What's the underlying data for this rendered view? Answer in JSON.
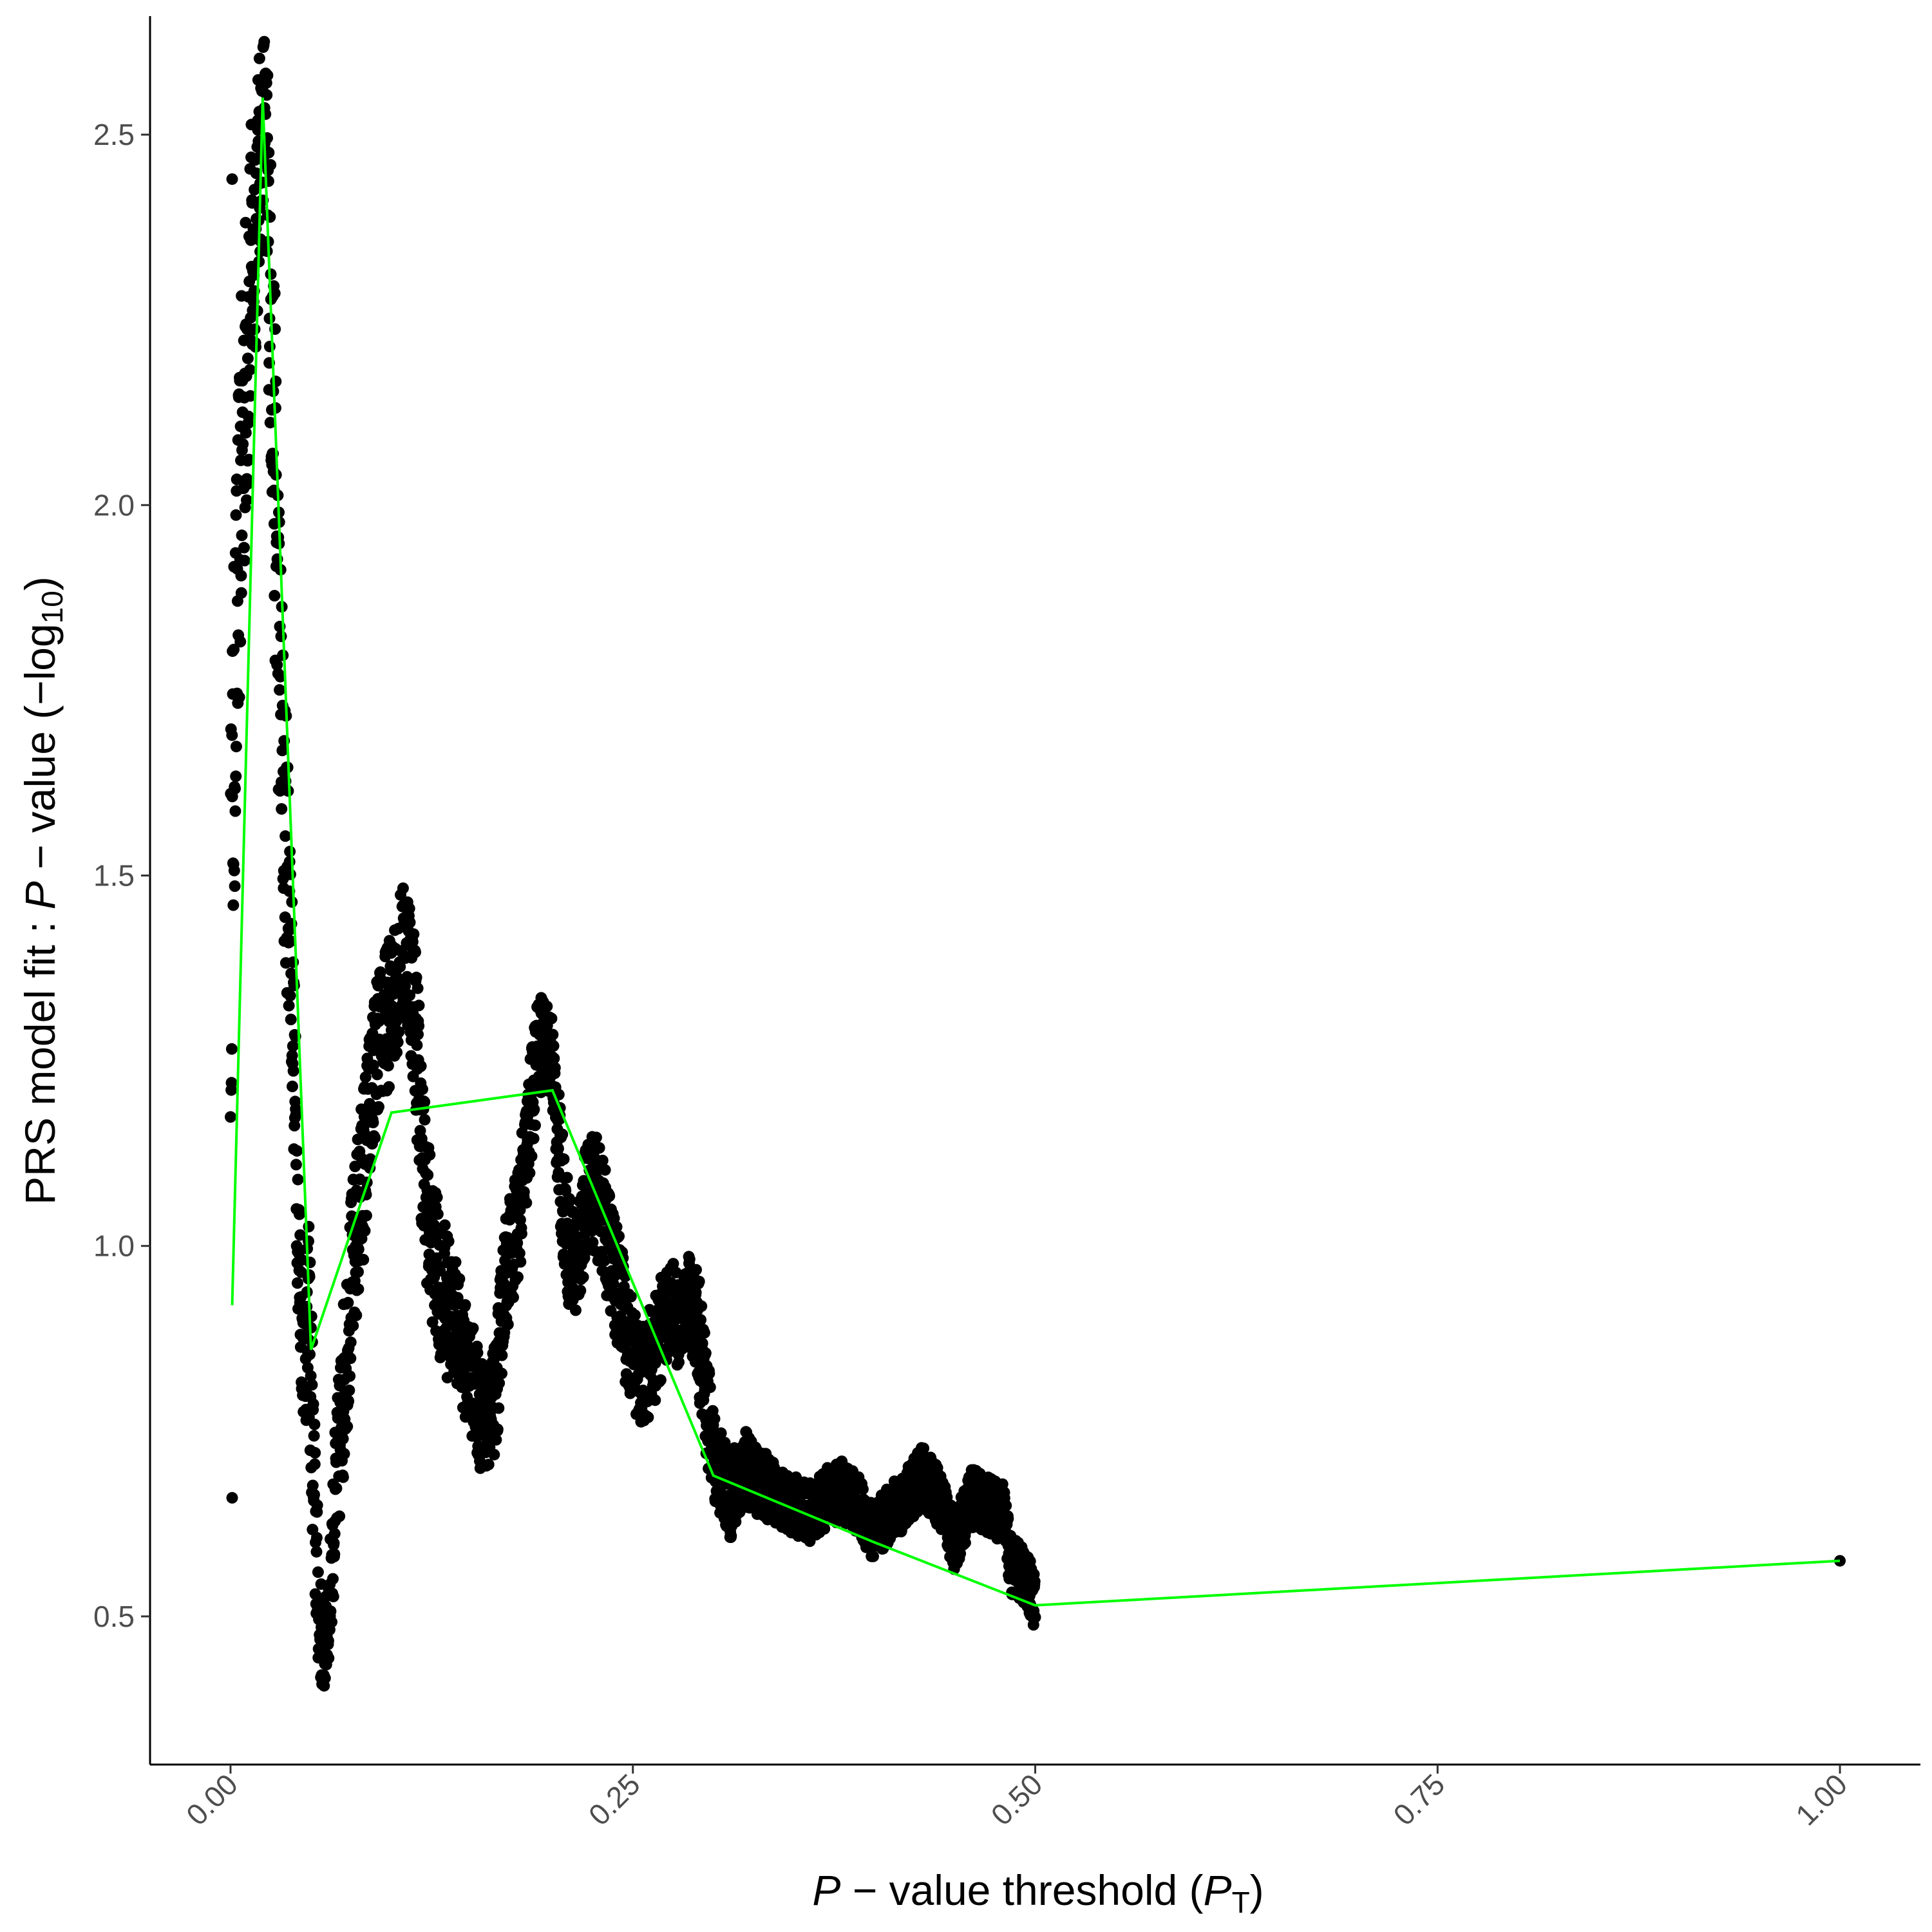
{
  "chart_data": {
    "type": "scatter",
    "title": "",
    "xlabel": {
      "p": "P",
      "mid": " − value threshold (",
      "pt": "P",
      "sub": "T",
      "close": ")"
    },
    "ylabel": {
      "pre": "PRS model fit : ",
      "p": "P",
      "mid": " − value (−log",
      "sub": "10",
      "close": ")"
    },
    "xlim": [
      -0.05,
      1.05
    ],
    "ylim": [
      0.3,
      2.66
    ],
    "x_ticks": [
      0.0,
      0.25,
      0.5,
      0.75,
      1.0
    ],
    "x_tick_labels": [
      "0.00",
      "0.25",
      "0.50",
      "0.75",
      "1.00"
    ],
    "y_ticks": [
      0.5,
      1.0,
      1.5,
      2.0,
      2.5
    ],
    "y_tick_labels": [
      "0.5",
      "1.0",
      "1.5",
      "2.0",
      "2.5"
    ],
    "grid": false,
    "legend": "none",
    "colors": {
      "points": "#000000",
      "line": "#00ff00",
      "axis": "#000000",
      "tick_text": "#4d4d4d"
    },
    "trend_line": {
      "x": [
        0.001,
        0.02,
        0.05,
        0.1,
        0.2,
        0.3,
        0.4,
        0.5,
        1.0
      ],
      "y": [
        0.92,
        2.55,
        0.86,
        1.18,
        1.21,
        0.69,
        0.6,
        0.515,
        0.575
      ]
    },
    "profile": {
      "x": [
        0.0,
        0.001,
        0.003,
        0.006,
        0.01,
        0.014,
        0.018,
        0.021,
        0.023,
        0.026,
        0.029,
        0.033,
        0.037,
        0.04,
        0.043,
        0.046,
        0.049,
        0.052,
        0.055,
        0.058,
        0.061,
        0.065,
        0.07,
        0.075,
        0.08,
        0.085,
        0.09,
        0.095,
        0.1,
        0.105,
        0.11,
        0.115,
        0.12,
        0.125,
        0.13,
        0.135,
        0.14,
        0.145,
        0.15,
        0.155,
        0.16,
        0.165,
        0.17,
        0.175,
        0.18,
        0.185,
        0.19,
        0.195,
        0.2,
        0.205,
        0.21,
        0.215,
        0.22,
        0.225,
        0.23,
        0.235,
        0.24,
        0.245,
        0.25,
        0.255,
        0.26,
        0.265,
        0.27,
        0.275,
        0.28,
        0.285,
        0.29,
        0.295,
        0.3,
        0.31,
        0.32,
        0.33,
        0.34,
        0.35,
        0.36,
        0.37,
        0.38,
        0.39,
        0.4,
        0.41,
        0.42,
        0.43,
        0.44,
        0.45,
        0.46,
        0.47,
        0.48,
        0.485,
        0.49,
        0.495,
        0.5
      ],
      "y": [
        1.4,
        1.55,
        1.75,
        2.0,
        2.2,
        2.35,
        2.45,
        2.55,
        2.4,
        2.2,
        1.9,
        1.6,
        1.45,
        1.2,
        0.95,
        0.85,
        0.9,
        0.65,
        0.5,
        0.45,
        0.5,
        0.65,
        0.8,
        0.95,
        1.05,
        1.15,
        1.25,
        1.3,
        1.32,
        1.38,
        1.4,
        1.3,
        1.1,
        1.0,
        0.95,
        0.92,
        0.9,
        0.85,
        0.82,
        0.78,
        0.76,
        0.8,
        0.95,
        1.0,
        1.05,
        1.15,
        1.25,
        1.28,
        1.25,
        1.1,
        1.0,
        0.97,
        1.05,
        1.08,
        1.05,
        1.0,
        0.95,
        0.9,
        0.85,
        0.82,
        0.84,
        0.88,
        0.9,
        0.92,
        0.88,
        0.93,
        0.9,
        0.8,
        0.72,
        0.66,
        0.7,
        0.68,
        0.66,
        0.65,
        0.64,
        0.66,
        0.67,
        0.65,
        0.61,
        0.64,
        0.66,
        0.69,
        0.66,
        0.6,
        0.66,
        0.65,
        0.64,
        0.57,
        0.56,
        0.55,
        0.52
      ],
      "spread": [
        0.28,
        0.28,
        0.24,
        0.24,
        0.24,
        0.2,
        0.16,
        0.1,
        0.16,
        0.24,
        0.24,
        0.2,
        0.16,
        0.12,
        0.12,
        0.1,
        0.14,
        0.14,
        0.08,
        0.06,
        0.06,
        0.1,
        0.12,
        0.12,
        0.12,
        0.12,
        0.1,
        0.1,
        0.1,
        0.1,
        0.1,
        0.12,
        0.12,
        0.1,
        0.1,
        0.1,
        0.08,
        0.08,
        0.08,
        0.08,
        0.06,
        0.08,
        0.08,
        0.08,
        0.08,
        0.08,
        0.08,
        0.06,
        0.06,
        0.08,
        0.08,
        0.08,
        0.08,
        0.08,
        0.08,
        0.08,
        0.08,
        0.08,
        0.08,
        0.06,
        0.08,
        0.08,
        0.06,
        0.06,
        0.06,
        0.06,
        0.08,
        0.08,
        0.06,
        0.06,
        0.05,
        0.05,
        0.04,
        0.04,
        0.04,
        0.04,
        0.04,
        0.04,
        0.04,
        0.04,
        0.04,
        0.04,
        0.04,
        0.04,
        0.04,
        0.04,
        0.04,
        0.04,
        0.04,
        0.04,
        0.04
      ]
    },
    "special_points": [
      {
        "x": 0.001,
        "y": 2.44
      },
      {
        "x": 0.023,
        "y": 2.58
      },
      {
        "x": 0.001,
        "y": 0.66
      },
      {
        "x": 1.0,
        "y": 0.575
      }
    ]
  }
}
